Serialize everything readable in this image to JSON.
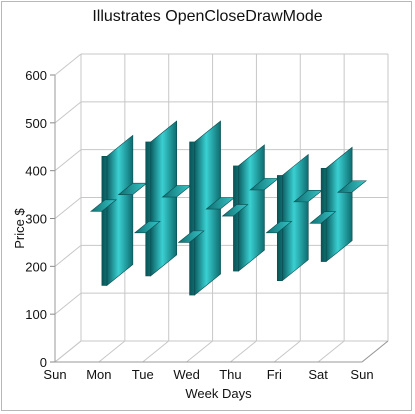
{
  "chart_data": {
    "type": "hilo-open-close-3d",
    "title": "Illustrates OpenCloseDrawMode",
    "xlabel": "Week Days",
    "ylabel": "Price $",
    "categories": [
      "Sun",
      "Mon",
      "Tue",
      "Wed",
      "Thu",
      "Fri",
      "Sat",
      "Sun"
    ],
    "points": [
      {
        "day": "Mon",
        "high": 430,
        "low": 160,
        "open": 315,
        "close": 330
      },
      {
        "day": "Tue",
        "high": 460,
        "low": 180,
        "open": 270,
        "close": 325
      },
      {
        "day": "Wed",
        "high": 460,
        "low": 140,
        "open": 250,
        "close": 300
      },
      {
        "day": "Thu",
        "high": 410,
        "low": 190,
        "open": 305,
        "close": 340
      },
      {
        "day": "Fri",
        "high": 390,
        "low": 170,
        "open": 270,
        "close": 315
      },
      {
        "day": "Sat",
        "high": 405,
        "low": 210,
        "open": 290,
        "close": 335
      }
    ],
    "ylim": [
      0,
      600
    ],
    "yticks": [
      0,
      100,
      200,
      300,
      400,
      500,
      600
    ],
    "grid": true,
    "series_color": "#1e9a9e"
  }
}
